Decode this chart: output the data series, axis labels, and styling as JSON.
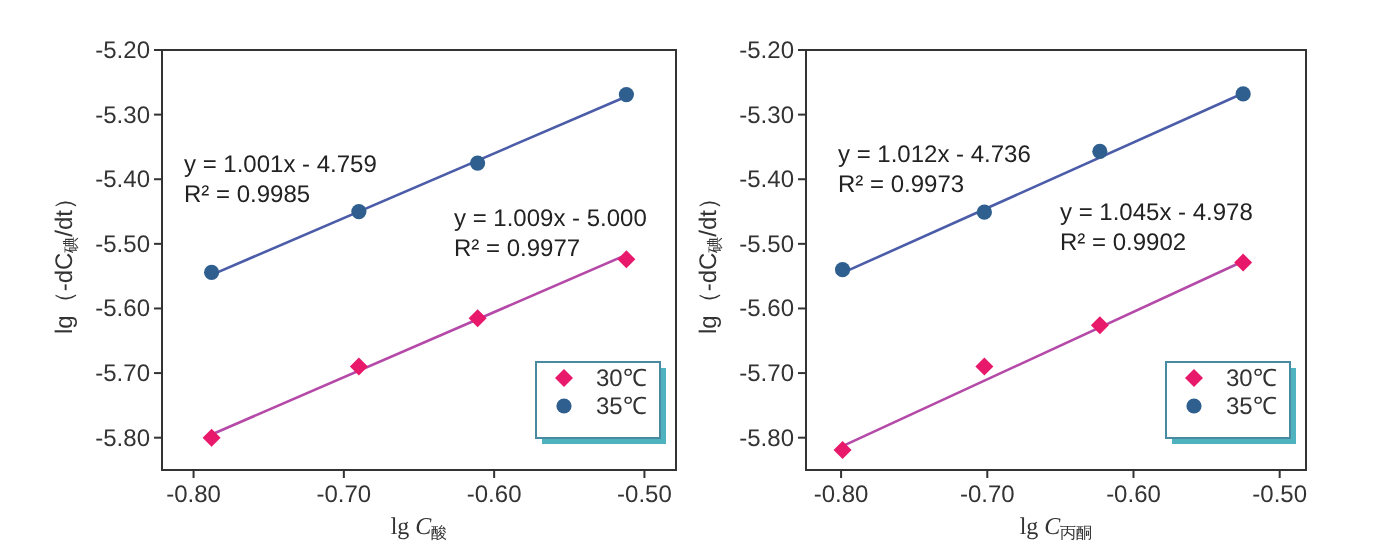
{
  "chart_data": [
    {
      "type": "scatter",
      "xlabel": "lg *C*$_{酸}$",
      "ylabel": "lg（-dC$_{碘}$/dt）",
      "xlim": [
        -0.821,
        -0.479
      ],
      "ylim": [
        -5.85,
        -5.2
      ],
      "xticks": [
        {
          "value": -0.8,
          "label": "-0.80"
        },
        {
          "value": -0.7,
          "label": "-0.70"
        },
        {
          "value": -0.6,
          "label": "-0.60"
        },
        {
          "value": -0.5,
          "label": "-0.50"
        }
      ],
      "yticks": [
        {
          "value": -5.2,
          "label": "-5.20"
        },
        {
          "value": -5.3,
          "label": "-5.30"
        },
        {
          "value": -5.4,
          "label": "-5.40"
        },
        {
          "value": -5.5,
          "label": "-5.50"
        },
        {
          "value": -5.6,
          "label": "-5.60"
        },
        {
          "value": -5.7,
          "label": "-5.70"
        },
        {
          "value": -5.8,
          "label": "-5.80"
        }
      ],
      "legend": "bottom right",
      "series": [
        {
          "name": "30℃",
          "type": "scatter",
          "marker": "diamond",
          "color": "#e8196a",
          "x": [
            -0.788,
            -0.69,
            -0.611,
            -0.512
          ],
          "values": [
            -5.8,
            -5.69,
            -5.615,
            -5.524
          ]
        },
        {
          "name": "35℃",
          "type": "scatter",
          "marker": "circle",
          "color": "#2e5f8e",
          "x": [
            -0.788,
            -0.69,
            -0.611,
            -0.512
          ],
          "values": [
            -5.544,
            -5.45,
            -5.375,
            -5.269
          ]
        },
        {
          "type": "line",
          "color": "#b549a8",
          "x": [
            -0.788,
            -0.512
          ],
          "values": [
            -5.795,
            -5.517
          ]
        },
        {
          "type": "line",
          "color": "#4b5ca8",
          "x": [
            -0.788,
            -0.512
          ],
          "values": [
            -5.548,
            -5.272
          ]
        }
      ],
      "annotations": [
        "y = 1.001x - 4.759",
        "R² = 0.9985",
        "y = 1.009x - 5.000",
        "R² = 0.9977"
      ]
    },
    {
      "type": "scatter",
      "xlabel": "lg *C*$_{丙酮}$",
      "ylabel": "lg（-dC$_{碘}$/dt）",
      "xlim": [
        -0.824,
        -0.482
      ],
      "ylim": [
        -5.85,
        -5.2
      ],
      "xticks": [
        {
          "value": -0.8,
          "label": "-0.80"
        },
        {
          "value": -0.7,
          "label": "-0.70"
        },
        {
          "value": -0.6,
          "label": "-0.60"
        },
        {
          "value": -0.5,
          "label": "-0.50"
        }
      ],
      "yticks": [
        {
          "value": -5.2,
          "label": "-5.20"
        },
        {
          "value": -5.3,
          "label": "-5.30"
        },
        {
          "value": -5.4,
          "label": "-5.40"
        },
        {
          "value": -5.5,
          "label": "-5.50"
        },
        {
          "value": -5.6,
          "label": "-5.60"
        },
        {
          "value": -5.7,
          "label": "-5.70"
        },
        {
          "value": -5.8,
          "label": "-5.80"
        }
      ],
      "legend": "bottom right",
      "series": [
        {
          "name": "30℃",
          "type": "scatter",
          "marker": "diamond",
          "color": "#e8196a",
          "x": [
            -0.799,
            -0.702,
            -0.623,
            -0.525
          ],
          "values": [
            -5.819,
            -5.69,
            -5.626,
            -5.529
          ]
        },
        {
          "name": "35℃",
          "type": "scatter",
          "marker": "circle",
          "color": "#2e5f8e",
          "x": [
            -0.799,
            -0.702,
            -0.623,
            -0.525
          ],
          "values": [
            -5.54,
            -5.451,
            -5.357,
            -5.268
          ]
        },
        {
          "type": "line",
          "color": "#b549a8",
          "x": [
            -0.799,
            -0.525
          ],
          "values": [
            -5.813,
            -5.527
          ]
        },
        {
          "type": "line",
          "color": "#4b5ca8",
          "x": [
            -0.799,
            -0.525
          ],
          "values": [
            -5.545,
            -5.267
          ]
        }
      ],
      "annotations": [
        "y = 1.012x - 4.736",
        "R² = 0.9973",
        "y = 1.045x - 4.978",
        "R² = 0.9902"
      ]
    }
  ]
}
